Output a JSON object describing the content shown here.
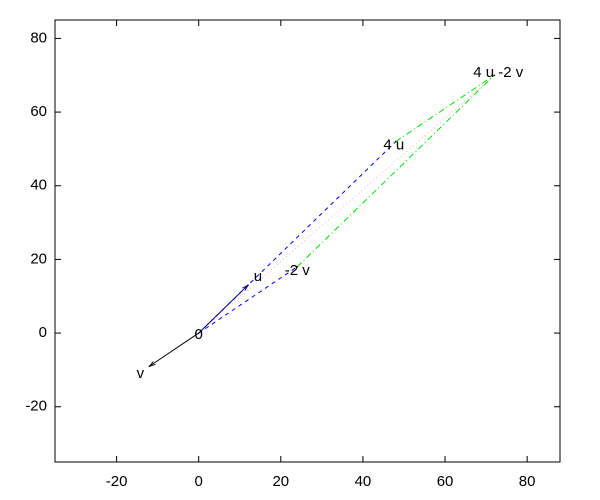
{
  "chart_data": {
    "type": "vector",
    "points": [
      {
        "label": "0",
        "x": 0,
        "y": 0
      },
      {
        "label": "u",
        "x": 12,
        "y": 13
      },
      {
        "label": "v",
        "x": -12,
        "y": -9
      },
      {
        "label": "4 u",
        "x": 48,
        "y": 52
      },
      {
        "label": "-2 v",
        "x": 24,
        "y": 18
      },
      {
        "label": "4 u -2 v",
        "x": 72,
        "y": 70
      }
    ],
    "xlim": [
      -35,
      88
    ],
    "xticks": [
      -20,
      0,
      20,
      40,
      60,
      80
    ],
    "ylim": [
      -35,
      85
    ],
    "yticks": [
      -20,
      0,
      20,
      40,
      60,
      80
    ]
  }
}
